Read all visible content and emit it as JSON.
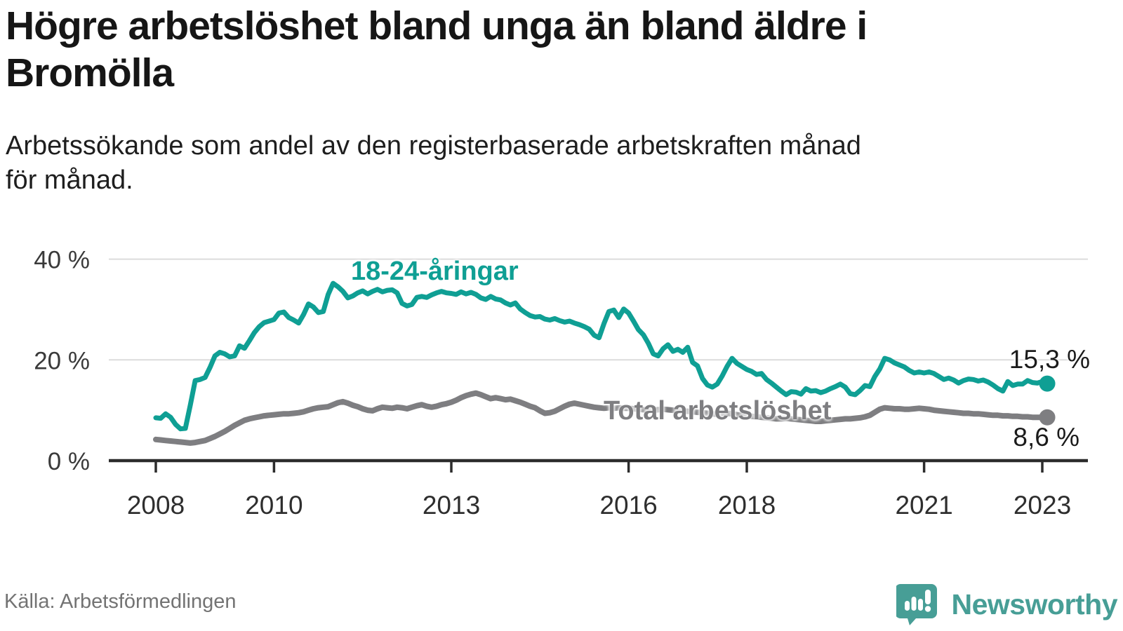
{
  "header": {
    "title": "Högre arbetslöshet bland unga än bland äldre i Bromölla",
    "title_lines": [
      "Högre arbetslöshet bland unga än bland äldre i",
      "Bromölla"
    ],
    "subtitle": "Arbetssökande som andel av den registerbaserade arbetskraften månad för månad.",
    "subtitle_lines": [
      "Arbetssökande som andel av den registerbaserade arbetskraften månad",
      "för månad."
    ]
  },
  "chart_data": {
    "type": "line",
    "title": "Högre arbetslöshet bland unga än bland äldre i Bromölla",
    "subtitle": "Arbetssökande som andel av den registerbaserade arbetskraften månad för månad.",
    "unit": "%",
    "x_start": "2008-01",
    "x_end": "2023-02",
    "x_interval": "month",
    "grid": "horizontal",
    "ylim": [
      0,
      43
    ],
    "x_tick_years": [
      2008,
      2010,
      2013,
      2016,
      2018,
      2021,
      2023
    ],
    "x_tick_labels": [
      "2008",
      "2010",
      "2013",
      "2016",
      "2018",
      "2021",
      "2023"
    ],
    "y_tick_values": [
      0,
      20,
      40
    ],
    "y_tick_labels": [
      "0 %",
      "20 %",
      "40 %"
    ],
    "series": [
      {
        "id": "youth",
        "name": "18-24-åringar",
        "color": "#0f9f94",
        "end_value": 15.3,
        "end_label": "15,3 %",
        "values": [
          8.5,
          8.4,
          9.3,
          8.6,
          7.2,
          6.3,
          6.4,
          11.0,
          15.9,
          16.1,
          16.5,
          18.5,
          20.8,
          21.5,
          21.2,
          20.6,
          20.8,
          22.8,
          22.3,
          23.8,
          25.4,
          26.6,
          27.4,
          27.7,
          28.0,
          29.3,
          29.5,
          28.4,
          27.9,
          27.3,
          29.0,
          31.1,
          30.5,
          29.4,
          29.6,
          33.0,
          35.2,
          34.5,
          33.6,
          32.3,
          32.7,
          33.3,
          33.7,
          33.1,
          33.6,
          34.0,
          33.5,
          33.8,
          33.9,
          33.3,
          31.2,
          30.7,
          31.0,
          32.4,
          32.6,
          32.4,
          32.9,
          33.3,
          33.6,
          33.3,
          33.2,
          33.0,
          33.5,
          33.1,
          33.4,
          33.0,
          32.3,
          32.0,
          32.6,
          32.1,
          31.9,
          31.3,
          30.9,
          31.3,
          30.1,
          29.4,
          28.8,
          28.5,
          28.6,
          28.1,
          27.9,
          28.2,
          27.8,
          27.5,
          27.7,
          27.3,
          27.0,
          26.6,
          26.1,
          24.9,
          24.4,
          27.2,
          29.6,
          29.9,
          28.4,
          30.1,
          29.3,
          27.7,
          26.0,
          25.0,
          23.3,
          21.2,
          20.8,
          22.2,
          23.0,
          21.7,
          22.1,
          21.5,
          22.5,
          19.5,
          18.8,
          16.3,
          15.0,
          14.6,
          15.2,
          16.8,
          18.7,
          20.3,
          19.3,
          18.7,
          18.1,
          17.7,
          17.1,
          17.3,
          16.1,
          15.4,
          14.6,
          13.8,
          13.1,
          13.7,
          13.6,
          13.2,
          14.3,
          13.8,
          13.9,
          13.5,
          13.8,
          14.3,
          14.7,
          15.2,
          14.6,
          13.3,
          13.1,
          13.9,
          14.9,
          14.7,
          16.7,
          18.2,
          20.3,
          20.0,
          19.4,
          19.0,
          18.6,
          17.9,
          17.4,
          17.6,
          17.4,
          17.6,
          17.3,
          16.7,
          16.1,
          16.4,
          16.0,
          15.4,
          15.9,
          16.2,
          16.1,
          15.8,
          16.0,
          15.6,
          15.0,
          14.3,
          13.8,
          15.7,
          14.9,
          15.2,
          15.2,
          15.9,
          15.5,
          15.4,
          15.7,
          15.3
        ]
      },
      {
        "id": "total",
        "name": "Total arbetslöshet",
        "color": "#7e7e81",
        "end_value": 8.6,
        "end_label": "8,6 %",
        "values": [
          4.2,
          4.1,
          4.0,
          3.9,
          3.8,
          3.7,
          3.6,
          3.5,
          3.6,
          3.8,
          4.0,
          4.4,
          4.8,
          5.3,
          5.8,
          6.4,
          7.0,
          7.5,
          8.0,
          8.3,
          8.5,
          8.7,
          8.9,
          9.0,
          9.1,
          9.2,
          9.3,
          9.3,
          9.4,
          9.5,
          9.7,
          10.0,
          10.3,
          10.5,
          10.6,
          10.7,
          11.1,
          11.5,
          11.7,
          11.4,
          11.0,
          10.7,
          10.3,
          10.0,
          9.9,
          10.3,
          10.6,
          10.5,
          10.4,
          10.6,
          10.5,
          10.3,
          10.6,
          10.9,
          11.1,
          10.8,
          10.6,
          10.8,
          11.1,
          11.3,
          11.6,
          12.0,
          12.5,
          12.9,
          13.2,
          13.4,
          13.1,
          12.7,
          12.3,
          12.5,
          12.3,
          12.1,
          12.2,
          11.9,
          11.6,
          11.2,
          10.8,
          10.5,
          9.9,
          9.4,
          9.5,
          9.8,
          10.3,
          10.8,
          11.2,
          11.4,
          11.2,
          11.0,
          10.8,
          10.6,
          10.5,
          10.4,
          10.5,
          10.4,
          10.5,
          10.4,
          10.4,
          10.3,
          10.2,
          10.1,
          10.0,
          10.0,
          10.1,
          10.2,
          10.1,
          10.0,
          9.9,
          9.8,
          9.8,
          9.7,
          9.6,
          9.5,
          9.4,
          9.3,
          9.2,
          9.3,
          9.4,
          9.3,
          9.1,
          9.0,
          8.9,
          8.8,
          8.7,
          8.6,
          8.5,
          8.4,
          8.3,
          8.3,
          8.4,
          8.3,
          8.2,
          8.1,
          8.0,
          7.9,
          7.8,
          7.8,
          7.9,
          8.0,
          8.1,
          8.2,
          8.3,
          8.3,
          8.4,
          8.5,
          8.7,
          9.0,
          9.6,
          10.2,
          10.5,
          10.4,
          10.3,
          10.3,
          10.2,
          10.2,
          10.3,
          10.4,
          10.3,
          10.2,
          10.0,
          9.9,
          9.8,
          9.7,
          9.6,
          9.5,
          9.4,
          9.4,
          9.3,
          9.3,
          9.2,
          9.1,
          9.0,
          9.0,
          8.9,
          8.9,
          8.8,
          8.8,
          8.7,
          8.7,
          8.6,
          8.6,
          8.6,
          8.6
        ]
      }
    ]
  },
  "footer": {
    "source": "Källa: Arbetsförmedlingen",
    "brand": "Newsworthy"
  },
  "icons": {
    "logo": "newsworthy-speech-bubble-barchart-icon"
  },
  "colors": {
    "accent_teal": "#0f9f94",
    "neutral_gray": "#7e7e81",
    "logo_teal": "#479e96",
    "gridline": "#dcdcdc",
    "axis": "#2c2c2c",
    "text_dark": "#161616"
  }
}
